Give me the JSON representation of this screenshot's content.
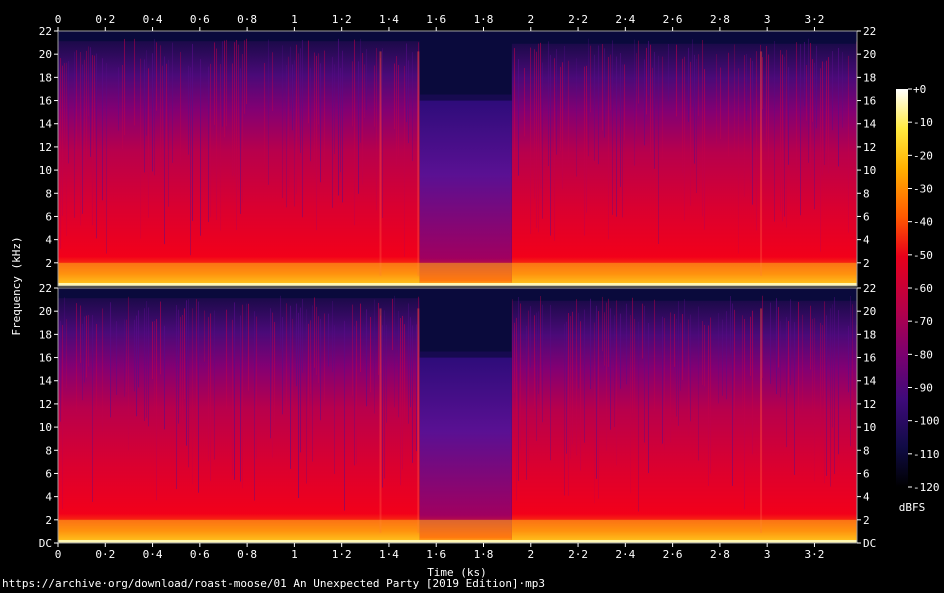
{
  "chart_data": {
    "type": "heatmap",
    "xlabel": "Time (ks)",
    "ylabel": "Frequency (kHz)",
    "x_ticks": [
      "0",
      "0·2",
      "0·4",
      "0·6",
      "0·8",
      "1",
      "1·2",
      "1·4",
      "1·6",
      "1·8",
      "2",
      "2·2",
      "2·4",
      "2·6",
      "2·8",
      "3",
      "3·2"
    ],
    "x_tick_values": [
      0,
      0.2,
      0.4,
      0.6,
      0.8,
      1,
      1.2,
      1.4,
      1.6,
      1.8,
      2,
      2.2,
      2.4,
      2.6,
      2.8,
      3,
      3.2
    ],
    "xlim": [
      0,
      3.38
    ],
    "channels": [
      {
        "y_ticks": [
          "22",
          "20",
          "18",
          "16",
          "14",
          "12",
          "10",
          "8",
          "6",
          "4",
          "2"
        ]
      },
      {
        "y_ticks": [
          "22",
          "20",
          "18",
          "16",
          "14",
          "12",
          "10",
          "8",
          "6",
          "4",
          "2",
          "DC"
        ]
      }
    ],
    "y_tick_values": [
      22,
      20,
      18,
      16,
      14,
      12,
      10,
      8,
      6,
      4,
      2,
      0
    ],
    "ylim": [
      0,
      22
    ],
    "colorbar": {
      "label": "dBFS",
      "ticks": [
        "+0",
        "-10",
        "-20",
        "-30",
        "-40",
        "-50",
        "-60",
        "-70",
        "-80",
        "-90",
        "-100",
        "-110",
        "-120"
      ],
      "range": [
        -120,
        0
      ]
    },
    "features": {
      "lowpass_cutoff_khz": 16,
      "lowpass_segment_ks": [
        1.53,
        1.92
      ],
      "loud_band_khz": [
        0,
        2
      ]
    }
  },
  "footer_text": "https://archive·org/download/roast-moose/01 An Unexpected Party [2019 Edition]·mp3"
}
